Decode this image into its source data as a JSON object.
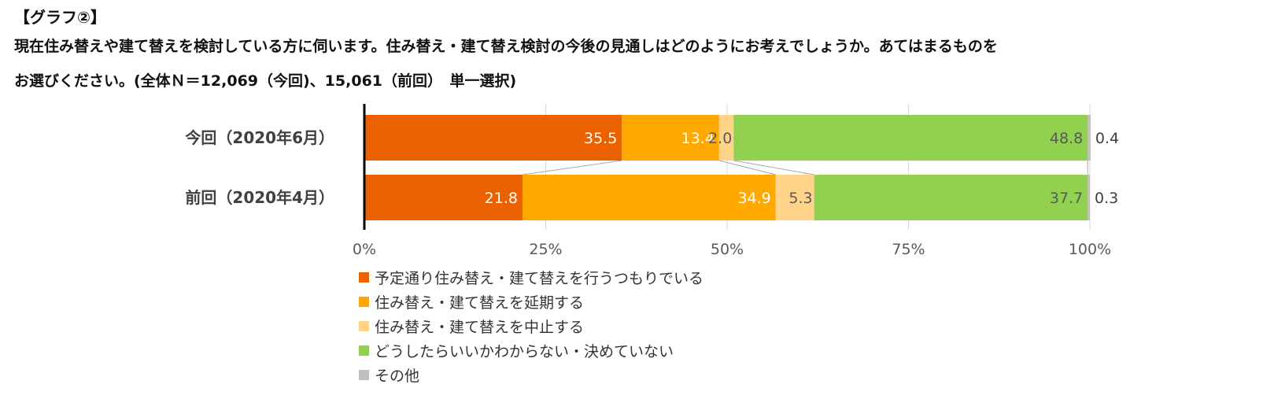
{
  "header": {
    "graph_label": "【グラフ②】",
    "question_line1": "現在住み替えや建て替えを検討している方に伺います。住み替え・建て替え検討の今後の見通しはどのようにお考えでしょうか。あてはまるものを",
    "question_line2": "お選びください。(全体Ｎ＝12,069（今回)、15,061（前回）　単一選択)"
  },
  "chart_data": {
    "type": "bar",
    "orientation": "horizontal",
    "stacked": true,
    "percent": true,
    "categories": [
      "今回（2020年6月）",
      "前回（2020年4月）"
    ],
    "series": [
      {
        "name": "予定通り住み替え・建て替えを行うつもりでいる",
        "values": [
          35.5,
          21.8
        ],
        "color": "#EB6100",
        "label_color": "#ffffff"
      },
      {
        "name": "住み替え・建て替えを延期する",
        "values": [
          13.4,
          34.9
        ],
        "color": "#FFA800",
        "label_color": "#ffffff"
      },
      {
        "name": "住み替え・建て替えを中止する",
        "values": [
          2.0,
          5.3
        ],
        "color": "#FFD48A",
        "label_color": "#595959"
      },
      {
        "name": "どうしたらいいかわからない・決めていない",
        "values": [
          48.8,
          37.7
        ],
        "color": "#92D050",
        "label_color": "#595959"
      },
      {
        "name": "その他",
        "values": [
          0.4,
          0.3
        ],
        "color": "#BFBFBF",
        "label_color": "#404040"
      }
    ],
    "xlim": [
      0,
      100
    ],
    "x_ticks": [
      "0%",
      "25%",
      "50%",
      "75%",
      "100%"
    ],
    "grid": true,
    "series_lines": true,
    "legend_position": "bottom-left"
  }
}
